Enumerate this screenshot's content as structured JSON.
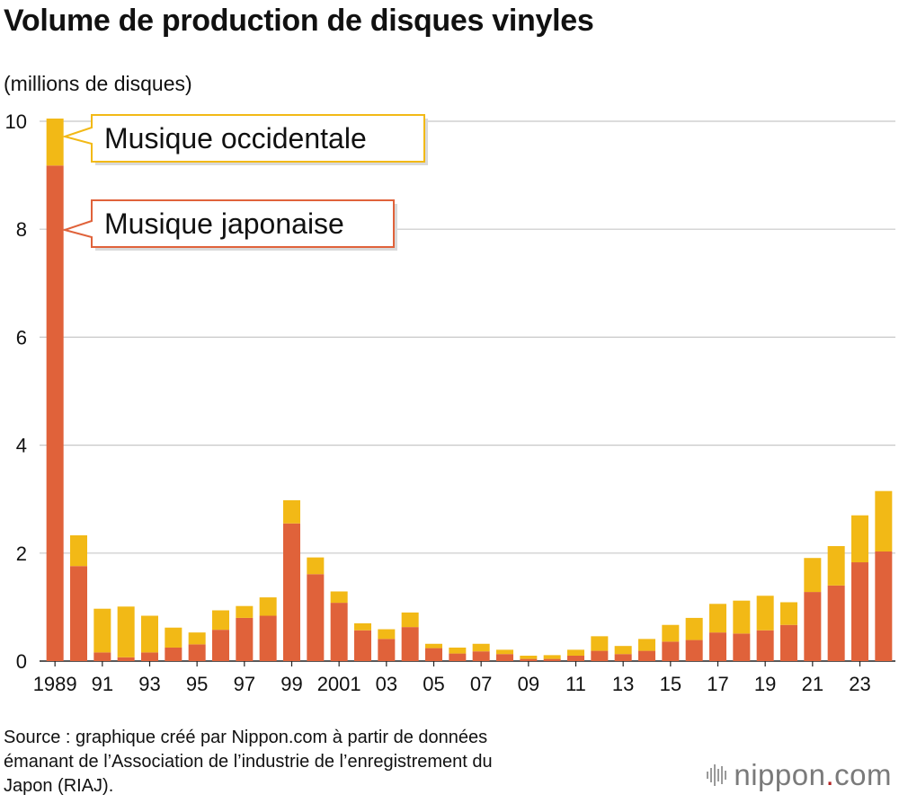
{
  "title": "Volume de production de disques vinyles",
  "unit_label": "(millions de disques)",
  "source": [
    "Source : graphique créé par Nippon.com à partir de données",
    "émanant de l’Association de l’industrie de l’enregistrement du",
    "Japon (RIAJ)."
  ],
  "logo": {
    "prefix": "nippon",
    "dot": ".",
    "suffix": "com",
    "icon": "sound-wave-icon"
  },
  "chart_data": {
    "type": "bar",
    "stacked": true,
    "ylim": [
      0,
      10
    ],
    "yticks": [
      "0",
      "2",
      "4",
      "6",
      "8",
      "10"
    ],
    "grid": true,
    "x": [
      1989,
      1990,
      1991,
      1992,
      1993,
      1994,
      1995,
      1996,
      1997,
      1998,
      1999,
      2000,
      2001,
      2002,
      2003,
      2004,
      2005,
      2006,
      2007,
      2008,
      2009,
      2010,
      2011,
      2012,
      2013,
      2014,
      2015,
      2016,
      2017,
      2018,
      2019,
      2020,
      2021,
      2022,
      2023,
      2024
    ],
    "xtick_labels": [
      "1989",
      "",
      "91",
      "",
      "93",
      "",
      "95",
      "",
      "97",
      "",
      "99",
      "",
      "2001",
      "",
      "03",
      "",
      "05",
      "",
      "07",
      "",
      "09",
      "",
      "11",
      "",
      "13",
      "",
      "15",
      "",
      "17",
      "",
      "19",
      "",
      "21",
      "",
      "23",
      ""
    ],
    "series": [
      {
        "name": "Musique japonaise",
        "color": "#e0623a",
        "values": [
          9.18,
          1.76,
          0.16,
          0.07,
          0.16,
          0.25,
          0.31,
          0.58,
          0.8,
          0.84,
          2.55,
          1.61,
          1.08,
          0.57,
          0.41,
          0.63,
          0.24,
          0.14,
          0.18,
          0.13,
          0.04,
          0.04,
          0.1,
          0.19,
          0.13,
          0.19,
          0.36,
          0.39,
          0.53,
          0.51,
          0.57,
          0.67,
          1.28,
          1.4,
          1.83,
          2.03
        ]
      },
      {
        "name": "Musique occidentale",
        "color": "#f2b916",
        "values": [
          0.87,
          0.57,
          0.81,
          0.94,
          0.68,
          0.37,
          0.22,
          0.36,
          0.22,
          0.34,
          0.43,
          0.31,
          0.21,
          0.13,
          0.18,
          0.27,
          0.08,
          0.11,
          0.14,
          0.08,
          0.06,
          0.07,
          0.11,
          0.27,
          0.15,
          0.22,
          0.31,
          0.41,
          0.53,
          0.61,
          0.64,
          0.42,
          0.63,
          0.73,
          0.87,
          1.12
        ]
      }
    ],
    "annotations": [
      {
        "text": "Musique occidentale",
        "series": "Musique occidentale"
      },
      {
        "text": "Musique japonaise",
        "series": "Musique japonaise"
      }
    ]
  }
}
